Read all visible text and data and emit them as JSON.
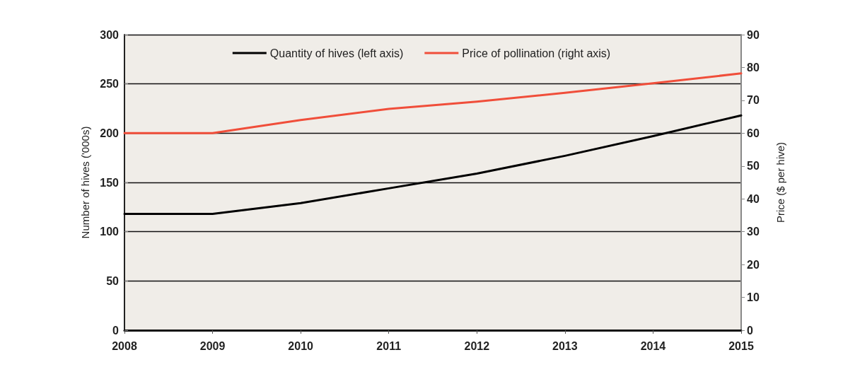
{
  "chart_data": {
    "type": "line",
    "categories": [
      "2008",
      "2009",
      "2010",
      "2011",
      "2012",
      "2013",
      "2014",
      "2015"
    ],
    "ylabel": "Number of hives ('000s)",
    "y2label": "Price ($ per hive)",
    "ylim": [
      0,
      300
    ],
    "yticks": [
      0,
      50,
      100,
      150,
      200,
      250,
      300
    ],
    "y2lim": [
      0,
      90
    ],
    "y2ticks": [
      0,
      10,
      20,
      30,
      40,
      50,
      60,
      70,
      80,
      90
    ],
    "grid": "y",
    "legend": "top",
    "marker": "none",
    "line_style": "solid",
    "series": [
      {
        "name": "Quantity of hives (left axis)",
        "color": "#000000",
        "values": [
          118,
          118,
          129,
          144,
          159,
          177,
          197,
          218
        ]
      },
      {
        "name": "Price of pollination (right axis)",
        "color": "#f04e3a",
        "axis": "y2",
        "values": [
          60,
          60,
          64,
          67.4,
          69.6,
          72.3,
          75.2,
          78.2
        ]
      }
    ]
  }
}
